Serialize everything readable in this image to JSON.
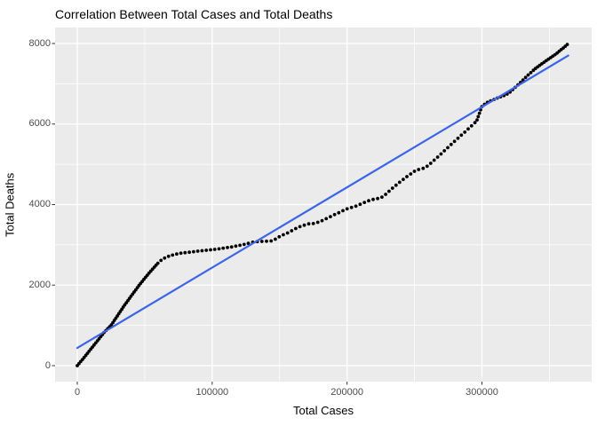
{
  "chart_data": {
    "type": "scatter",
    "title": "Correlation Between Total Cases and Total Deaths",
    "xlabel": "Total Cases",
    "ylabel": "Total Deaths",
    "x_ticks": [
      0,
      100000,
      200000,
      300000
    ],
    "x_tick_labels": [
      "0",
      "100000",
      "200000",
      "300000"
    ],
    "x_minor_ticks": [
      50000,
      150000,
      250000,
      350000
    ],
    "y_ticks": [
      0,
      2000,
      4000,
      6000,
      8000
    ],
    "y_tick_labels": [
      "0",
      "2000",
      "4000",
      "6000",
      "8000"
    ],
    "y_minor_ticks": [
      1000,
      3000,
      5000,
      7000
    ],
    "xlim": [
      -18200,
      382200
    ],
    "ylim": [
      -400,
      8400
    ],
    "grid": true,
    "legend": "none",
    "colors": {
      "panel_bg": "#EBEBEB",
      "grid": "#FFFFFF",
      "points": "#000000",
      "trend_line": "#3B64E8",
      "tick_text": "#4D4D4D",
      "title_text": "#000000",
      "tick_mark": "#333333"
    },
    "series": [
      {
        "name": "total-deaths-vs-total-cases",
        "points": [
          [
            0,
            0
          ],
          [
            5000,
            200
          ],
          [
            10000,
            410
          ],
          [
            15000,
            620
          ],
          [
            20000,
            830
          ],
          [
            25000,
            1000
          ],
          [
            30000,
            1250
          ],
          [
            35000,
            1500
          ],
          [
            40000,
            1730
          ],
          [
            45000,
            1960
          ],
          [
            50000,
            2170
          ],
          [
            54000,
            2330
          ],
          [
            58000,
            2480
          ],
          [
            61000,
            2590
          ],
          [
            64000,
            2660
          ],
          [
            68000,
            2720
          ],
          [
            72000,
            2760
          ],
          [
            76000,
            2790
          ],
          [
            80000,
            2805
          ],
          [
            85000,
            2825
          ],
          [
            90000,
            2845
          ],
          [
            95000,
            2862
          ],
          [
            100000,
            2880
          ],
          [
            105000,
            2900
          ],
          [
            110000,
            2928
          ],
          [
            115000,
            2950
          ],
          [
            120000,
            2985
          ],
          [
            125000,
            3020
          ],
          [
            128000,
            3050
          ],
          [
            132000,
            3080
          ],
          [
            137000,
            3085
          ],
          [
            141000,
            3092
          ],
          [
            145000,
            3100
          ],
          [
            149000,
            3190
          ],
          [
            153000,
            3255
          ],
          [
            157000,
            3310
          ],
          [
            161000,
            3390
          ],
          [
            165000,
            3450
          ],
          [
            168000,
            3485
          ],
          [
            171000,
            3520
          ],
          [
            175000,
            3528
          ],
          [
            179000,
            3565
          ],
          [
            183000,
            3625
          ],
          [
            187000,
            3690
          ],
          [
            191000,
            3755
          ],
          [
            195000,
            3815
          ],
          [
            199000,
            3885
          ],
          [
            203000,
            3925
          ],
          [
            207000,
            3965
          ],
          [
            211000,
            4025
          ],
          [
            215000,
            4085
          ],
          [
            219000,
            4125
          ],
          [
            222000,
            4145
          ],
          [
            225000,
            4165
          ],
          [
            229000,
            4265
          ],
          [
            233000,
            4390
          ],
          [
            237000,
            4500
          ],
          [
            241000,
            4610
          ],
          [
            245000,
            4710
          ],
          [
            248000,
            4780
          ],
          [
            251000,
            4850
          ],
          [
            254000,
            4880
          ],
          [
            257000,
            4905
          ],
          [
            260000,
            4965
          ],
          [
            264000,
            5085
          ],
          [
            268000,
            5205
          ],
          [
            272000,
            5330
          ],
          [
            276000,
            5455
          ],
          [
            280000,
            5580
          ],
          [
            284000,
            5700
          ],
          [
            288000,
            5820
          ],
          [
            292000,
            5945
          ],
          [
            296000,
            6070
          ],
          [
            300000,
            6440
          ],
          [
            303000,
            6520
          ],
          [
            306000,
            6570
          ],
          [
            309000,
            6610
          ],
          [
            312000,
            6655
          ],
          [
            315000,
            6690
          ],
          [
            318000,
            6730
          ],
          [
            321000,
            6800
          ],
          [
            324000,
            6890
          ],
          [
            327000,
            6980
          ],
          [
            330000,
            7080
          ],
          [
            333000,
            7180
          ],
          [
            336000,
            7270
          ],
          [
            339000,
            7360
          ],
          [
            342000,
            7440
          ],
          [
            345000,
            7510
          ],
          [
            348000,
            7580
          ],
          [
            351000,
            7650
          ],
          [
            354000,
            7720
          ],
          [
            356000,
            7770
          ],
          [
            358000,
            7830
          ],
          [
            360000,
            7880
          ],
          [
            361500,
            7925
          ],
          [
            363000,
            7970
          ],
          [
            364000,
            8000
          ]
        ]
      }
    ],
    "trend_line": {
      "type": "linear",
      "x": [
        0,
        364000
      ],
      "y": [
        440,
        7700
      ]
    }
  }
}
